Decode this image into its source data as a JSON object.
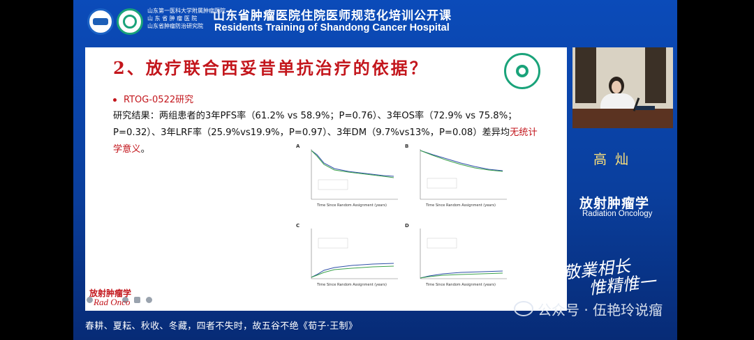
{
  "header": {
    "institutions": [
      "山东第一医科大学附属肿瘤医院",
      "山 东 省 肿 瘤 医 院",
      "山东省肿瘤防治研究院"
    ],
    "title_cn": "山东省肿瘤医院住院医师规范化培训公开课",
    "title_en": "Residents Training of Shandong Cancer Hospital"
  },
  "slide": {
    "title": "2、放疗联合西妥昔单抗治疗的依据？",
    "bullet": "RTOG-0522研究",
    "body_before": "研究结果：两组患者的3年PFS率（61.2% vs 58.9%；P=0.76）、3年OS率（72.9% vs 75.8%；P=0.32）、3年LRF率（25.9%vs19.9%，P=0.97）、3年DM（9.7%vs13%，P=0.08）差异均",
    "body_highlight": "无统计学意义",
    "body_after": "。",
    "figure": {
      "panels": [
        "A",
        "B",
        "C",
        "D"
      ],
      "x_axis_label": "Time Since Random Assignment (years)"
    }
  },
  "speaker": {
    "name": "高灿",
    "dept_cn": "放射肿瘤学",
    "dept_en": "Radiation Oncology"
  },
  "motto": [
    "敬業相长",
    "惟精惟一"
  ],
  "brand": {
    "cn": "放射肿瘤学",
    "en": "Rad Onco"
  },
  "watermark": "公众号 · 伍艳玲说瘤",
  "subtitle": "春耕、夏耘、秋收、冬藏，四者不失时，故五谷不绝《荀子·王制》",
  "colors": {
    "background": "#0a3f9e",
    "title_red": "#c3161c",
    "name_yellow": "#ffe27a",
    "curve_green": "#3aa14a",
    "curve_blue": "#2f4fa8"
  }
}
